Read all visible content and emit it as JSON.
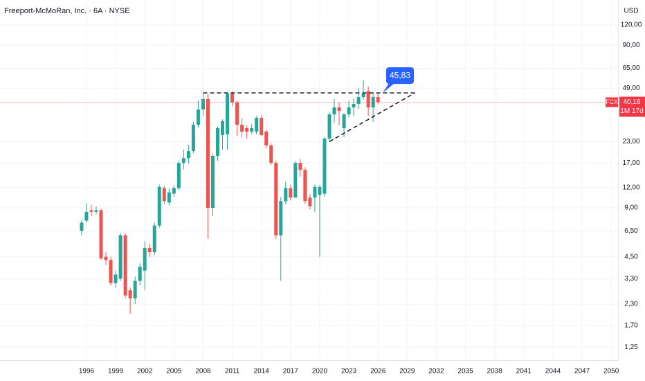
{
  "chart_data": {
    "type": "candlestick",
    "title": "Freeport-McMoRan, Inc. · 6A · NYSE",
    "currency": "USD",
    "x": [
      1995.5,
      1996,
      1996.5,
      1997,
      1997.5,
      1998,
      1998.5,
      1999,
      1999.5,
      2000,
      2000.5,
      2001,
      2001.5,
      2002,
      2002.5,
      2003,
      2003.5,
      2004,
      2004.5,
      2005,
      2005.5,
      2006,
      2006.5,
      2007,
      2007.5,
      2008,
      2008.5,
      2009,
      2009.5,
      2010,
      2010.5,
      2011,
      2011.5,
      2012,
      2012.5,
      2013,
      2013.5,
      2014,
      2014.5,
      2015,
      2015.5,
      2016,
      2016.5,
      2017,
      2017.5,
      2018,
      2018.5,
      2019,
      2019.5,
      2020,
      2020.5,
      2021,
      2021.5,
      2022,
      2022.5,
      2023,
      2023.5,
      2024,
      2024.5,
      2025,
      2025.5,
      2026
    ],
    "open": [
      6.5,
      7.5,
      8.7,
      8.5,
      8.7,
      4.5,
      4.3,
      3.1,
      3.3,
      6.1,
      2.8,
      2.5,
      3.2,
      3.7,
      5.1,
      4.8,
      7.0,
      11.9,
      9.7,
      11.0,
      11.9,
      17.0,
      18.2,
      20.1,
      29.2,
      36.2,
      42.0,
      9.0,
      18.8,
      25.2,
      25.5,
      45.4,
      40.0,
      29.2,
      27.8,
      26.5,
      26.5,
      32.2,
      26.5,
      21.8,
      17.0,
      6.1,
      9.9,
      11.9,
      10.4,
      17.0,
      15.4,
      10.4,
      10.4,
      10.8,
      11.0,
      24.0,
      33.8,
      37.3,
      27.8,
      33.8,
      37.3,
      39.2,
      43.2,
      47.0,
      37.3,
      43.2
    ],
    "high": [
      7.6,
      9.6,
      9.4,
      9.2,
      8.9,
      4.8,
      4.5,
      3.7,
      6.3,
      6.3,
      2.9,
      3.4,
      4.1,
      5.6,
      5.4,
      7.3,
      12.5,
      12.3,
      11.8,
      12.4,
      17.5,
      20.5,
      22.0,
      30.5,
      41.0,
      45.5,
      45.0,
      19.5,
      28.5,
      31.5,
      46.0,
      47.0,
      41.0,
      32.0,
      29.0,
      29.5,
      33.0,
      33.5,
      27.0,
      22.5,
      17.5,
      10.5,
      13.0,
      12.5,
      17.5,
      18.0,
      16.0,
      11.0,
      12.5,
      12.4,
      24.5,
      35.0,
      42.0,
      40.0,
      34.5,
      41.0,
      42.5,
      49.0,
      55.0,
      50.0,
      46.5,
      45.8
    ],
    "low": [
      6.1,
      7.3,
      8.0,
      8.2,
      4.3,
      4.0,
      3.0,
      2.9,
      3.2,
      2.5,
      2.0,
      2.3,
      3.0,
      2.8,
      4.5,
      4.6,
      6.8,
      9.5,
      9.3,
      10.5,
      11.5,
      15.5,
      16.8,
      19.5,
      28.0,
      33.0,
      5.8,
      8.0,
      17.5,
      20.5,
      20.5,
      38.0,
      25.0,
      24.5,
      24.0,
      25.5,
      25.5,
      25.0,
      21.0,
      16.5,
      5.8,
      3.2,
      9.5,
      10.0,
      10.5,
      14.0,
      9.5,
      8.8,
      8.5,
      4.5,
      10.5,
      23.0,
      30.0,
      29.0,
      24.5,
      32.5,
      33.0,
      36.5,
      41.5,
      33.0,
      30.5,
      39.0
    ],
    "close": [
      7.3,
      8.5,
      8.5,
      8.7,
      4.4,
      4.3,
      3.1,
      3.5,
      6.1,
      2.6,
      2.5,
      3.2,
      3.9,
      5.1,
      4.8,
      7.0,
      12.1,
      9.9,
      11.2,
      11.9,
      17.0,
      18.2,
      20.1,
      29.2,
      36.2,
      42.0,
      9.0,
      18.8,
      27.8,
      30.7,
      45.4,
      40.0,
      29.2,
      26.5,
      26.5,
      27.8,
      32.2,
      25.2,
      21.8,
      17.0,
      6.1,
      9.9,
      11.9,
      10.4,
      17.0,
      15.4,
      9.9,
      9.2,
      12.1,
      12.1,
      24.0,
      33.8,
      37.3,
      35.5,
      33.8,
      37.3,
      39.2,
      43.2,
      45.4,
      37.3,
      43.2,
      40.16
    ],
    "up_color": "#26a69a",
    "down_color": "#ef5350",
    "log_scale": true,
    "grid": true,
    "xlim": [
      1987.1,
      2050.7
    ],
    "ylim": [
      1.04,
      170.8
    ],
    "xticks": [
      1996,
      1999,
      2002,
      2005,
      2008,
      2011,
      2014,
      2017,
      2020,
      2023,
      2026,
      2029,
      2032,
      2035,
      2038,
      2041,
      2044,
      2047,
      2050
    ],
    "yticks": [
      {
        "value": 1.25,
        "label": "1,25"
      },
      {
        "value": 1.7,
        "label": "1,70"
      },
      {
        "value": 2.3,
        "label": "2,30"
      },
      {
        "value": 3.3,
        "label": "3,30"
      },
      {
        "value": 4.5,
        "label": "4,50"
      },
      {
        "value": 6.5,
        "label": "6,50"
      },
      {
        "value": 9,
        "label": "9,00"
      },
      {
        "value": 12,
        "label": "12,00"
      },
      {
        "value": 17,
        "label": "17,00"
      },
      {
        "value": 23,
        "label": "23,00"
      },
      {
        "value": 49,
        "label": "49,00"
      },
      {
        "value": 65,
        "label": "65,00"
      },
      {
        "value": 90,
        "label": "90,00"
      },
      {
        "value": 120,
        "label": "120,00"
      }
    ],
    "trend_lines": [
      {
        "x": [
          2008,
          2029.8
        ],
        "y": [
          45.83,
          45.83
        ]
      },
      {
        "x": [
          2021,
          2029.8
        ],
        "y": [
          23,
          45.83
        ]
      }
    ],
    "callout": {
      "value": 45.83,
      "label": "45,83",
      "color": "#2962ff"
    },
    "last_price": {
      "value": 40.16,
      "label": "40,16",
      "symbol": "FCX",
      "countdown": "1M 17d",
      "color": "#f23645"
    }
  }
}
